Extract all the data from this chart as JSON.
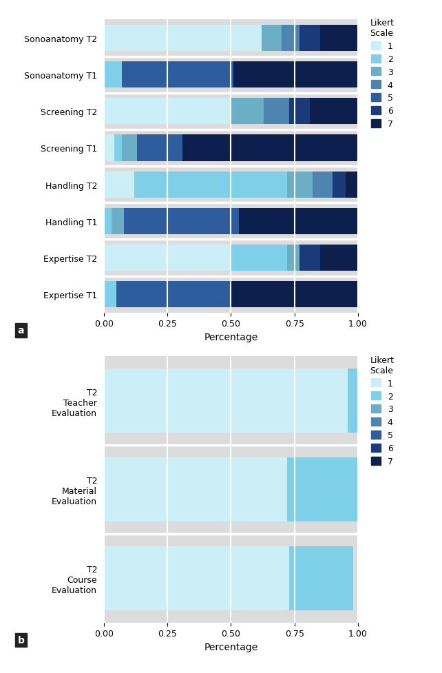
{
  "colors": [
    "#cceef7",
    "#7ecfe8",
    "#6baec6",
    "#4d85b0",
    "#2e5d9e",
    "#1a3a7a",
    "#0d1f4d"
  ],
  "legend_labels": [
    "1",
    "2",
    "3",
    "4",
    "5",
    "6",
    "7"
  ],
  "legend_title": "Likert\nScale",
  "panel_a": {
    "categories": [
      "Expertise T1",
      "Expertise T2",
      "Handling T1",
      "Handling T2",
      "Screening T1",
      "Screening T2",
      "Sonoanatomy T1",
      "Sonoanatomy T2"
    ],
    "data": {
      "Expertise T1": [
        0.0,
        0.05,
        0.0,
        0.0,
        0.45,
        0.0,
        0.5
      ],
      "Expertise T2": [
        0.5,
        0.22,
        0.05,
        0.0,
        0.0,
        0.08,
        0.15
      ],
      "Handling T1": [
        0.0,
        0.03,
        0.05,
        0.0,
        0.45,
        0.0,
        0.47
      ],
      "Handling T2": [
        0.12,
        0.6,
        0.1,
        0.08,
        0.0,
        0.05,
        0.05
      ],
      "Screening T1": [
        0.04,
        0.03,
        0.06,
        0.0,
        0.18,
        0.0,
        0.69
      ],
      "Screening T2": [
        0.5,
        0.0,
        0.13,
        0.1,
        0.0,
        0.08,
        0.19
      ],
      "Sonoanatomy T1": [
        0.0,
        0.07,
        0.0,
        0.0,
        0.44,
        0.0,
        0.49
      ],
      "Sonoanatomy T2": [
        0.62,
        0.0,
        0.08,
        0.07,
        0.0,
        0.08,
        0.15
      ]
    },
    "xlabel": "Percentage",
    "label": "a",
    "bg_color": "#dcdcdc"
  },
  "panel_b": {
    "categories": [
      "T2\nCourse\nEvaluation",
      "T2\nMaterial\nEvaluation",
      "T2\nTeacher\nEvaluation"
    ],
    "data": {
      "T2\nCourse\nEvaluation": [
        0.73,
        0.25,
        0.0,
        0.0,
        0.0,
        0.0,
        0.0
      ],
      "T2\nMaterial\nEvaluation": [
        0.72,
        0.28,
        0.0,
        0.0,
        0.0,
        0.0,
        0.0
      ],
      "T2\nTeacher\nEvaluation": [
        0.96,
        0.04,
        0.0,
        0.0,
        0.0,
        0.0,
        0.0
      ]
    },
    "xlabel": "Percentage",
    "label": "b",
    "bg_color": "#dcdcdc"
  }
}
